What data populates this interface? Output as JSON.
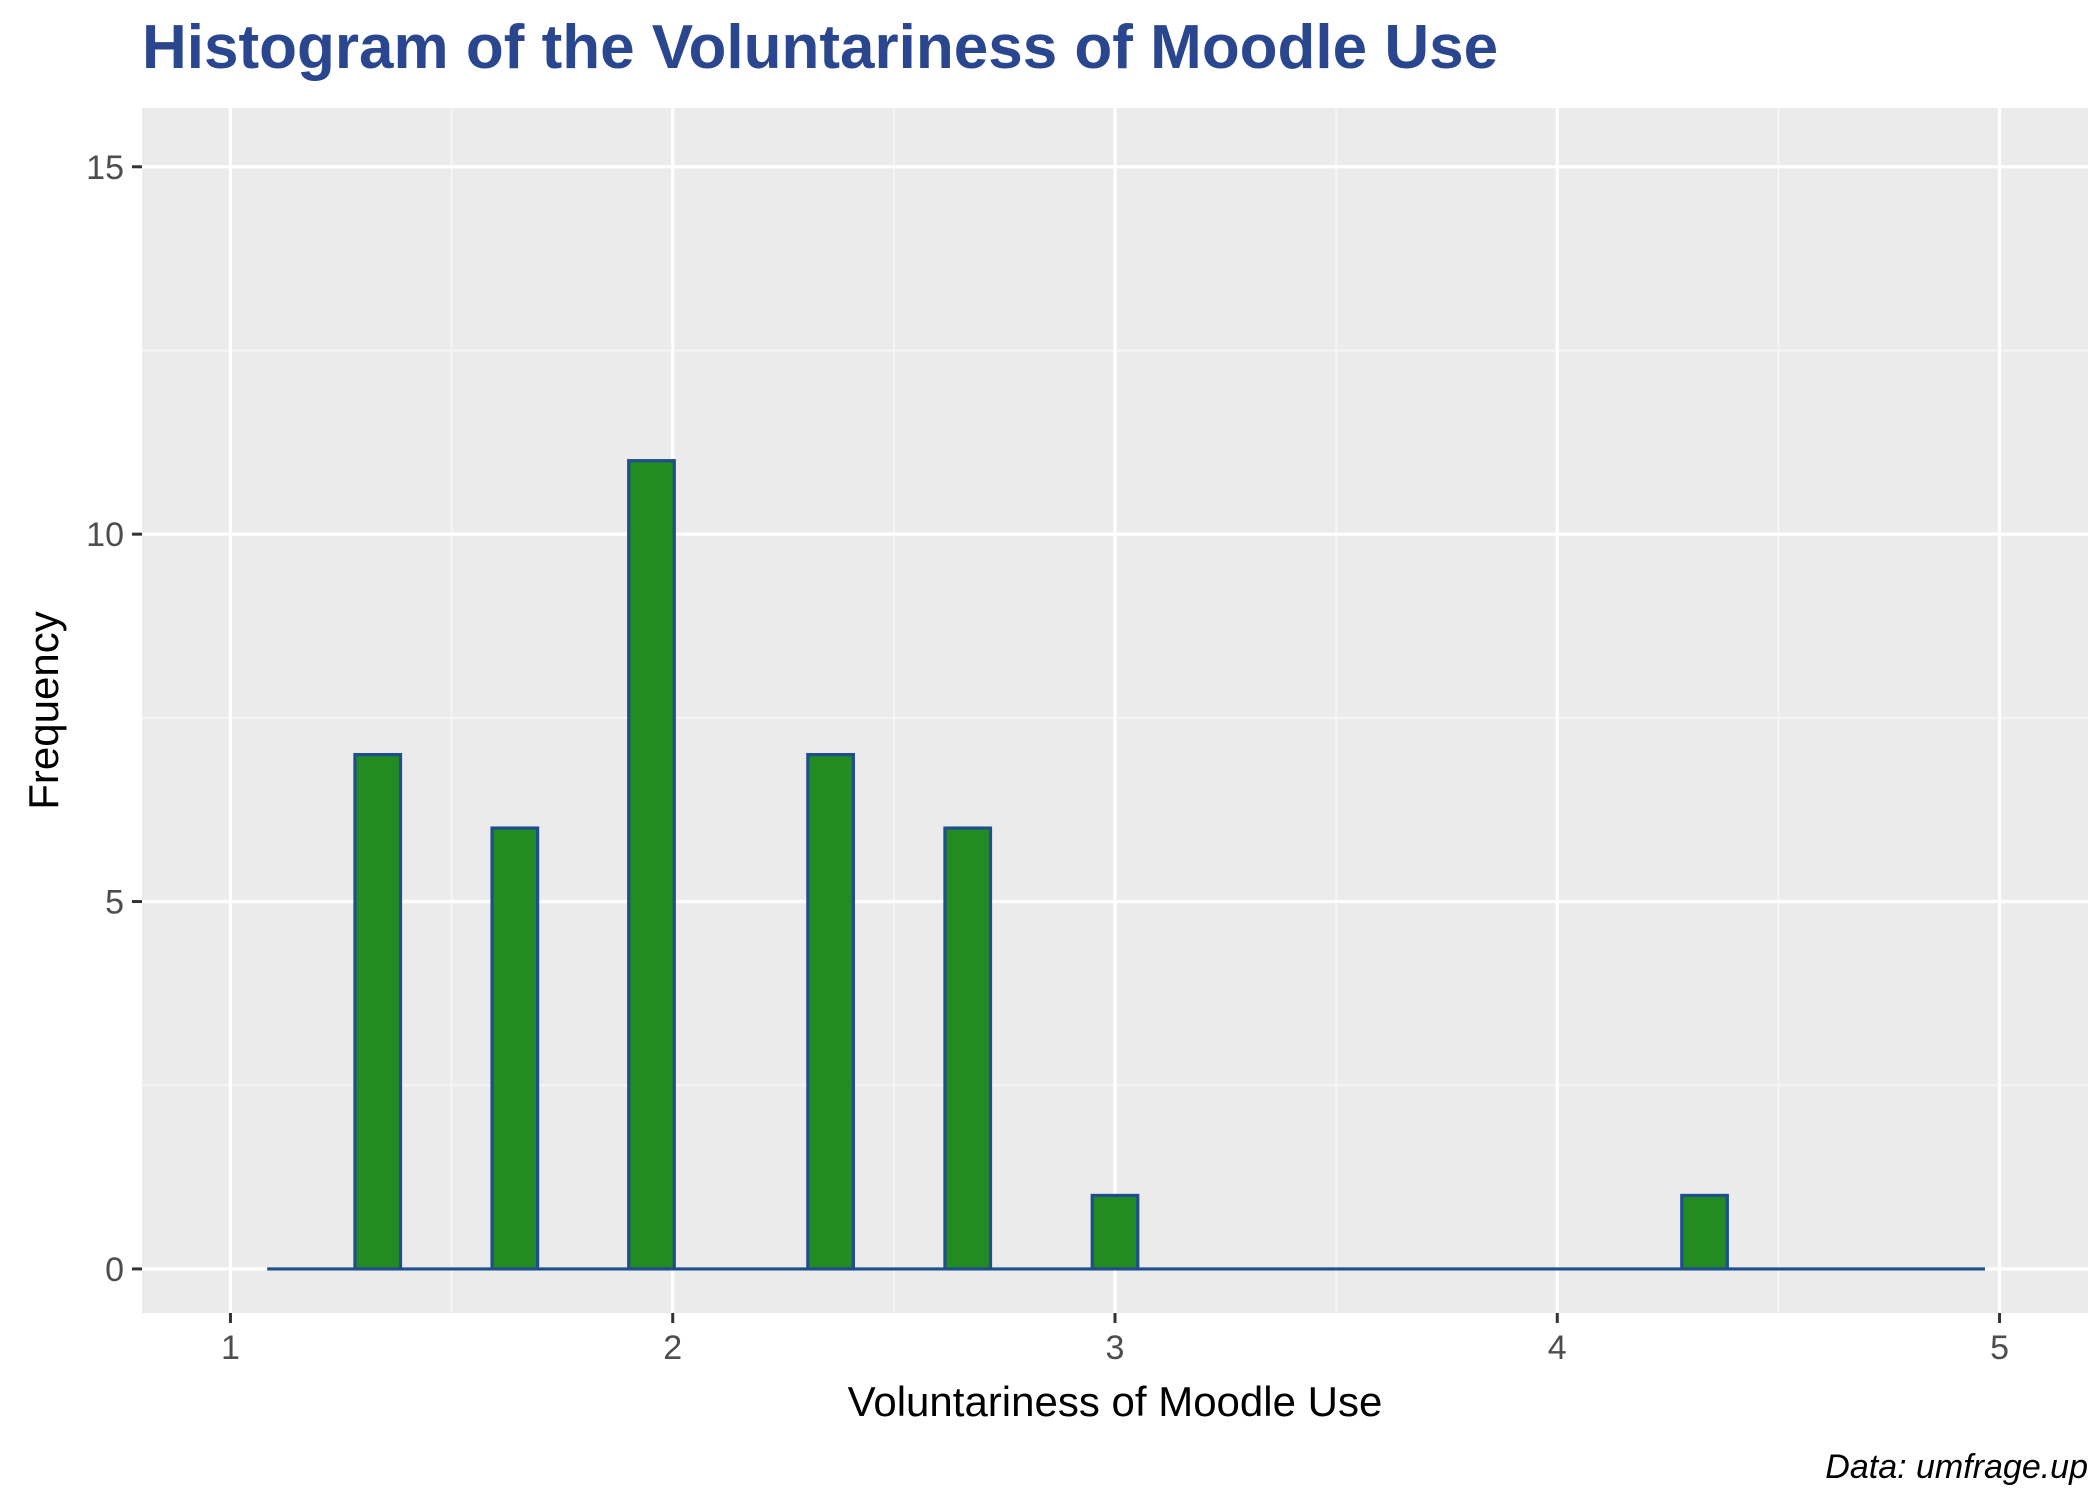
{
  "chart_data": {
    "type": "bar",
    "title": "Histogram of the Voluntariness of Moodle Use",
    "xlabel": "Voluntariness of Moodle Use",
    "ylabel": "Frequency",
    "caption": "Data: umfrage.up",
    "xlim": [
      0.8,
      5.2
    ],
    "ylim": [
      -0.6,
      15.8
    ],
    "x_ticks": [
      1,
      2,
      3,
      4,
      5
    ],
    "x_tick_labels": [
      "1",
      "2",
      "3",
      "4",
      "5"
    ],
    "y_ticks": [
      0,
      5,
      10,
      15
    ],
    "y_tick_labels": [
      "0",
      "5",
      "10",
      "15"
    ],
    "baseline_x_range": [
      1.083,
      4.967
    ],
    "bin_width": 0.103,
    "bins": [
      {
        "x": 1.333,
        "count": 7
      },
      {
        "x": 1.643,
        "count": 6
      },
      {
        "x": 1.952,
        "count": 11
      },
      {
        "x": 2.357,
        "count": 7
      },
      {
        "x": 2.667,
        "count": 6
      },
      {
        "x": 3.0,
        "count": 1
      },
      {
        "x": 4.333,
        "count": 1
      }
    ],
    "grid": true,
    "colors": {
      "title": "#2a468f",
      "bar_fill": "#228b22",
      "bar_outline": "#1f4e8c",
      "panel_background": "#ebebeb",
      "grid_major": "#ffffff",
      "grid_minor": "#f5f5f5",
      "tick_label": "#4d4d4d"
    }
  }
}
